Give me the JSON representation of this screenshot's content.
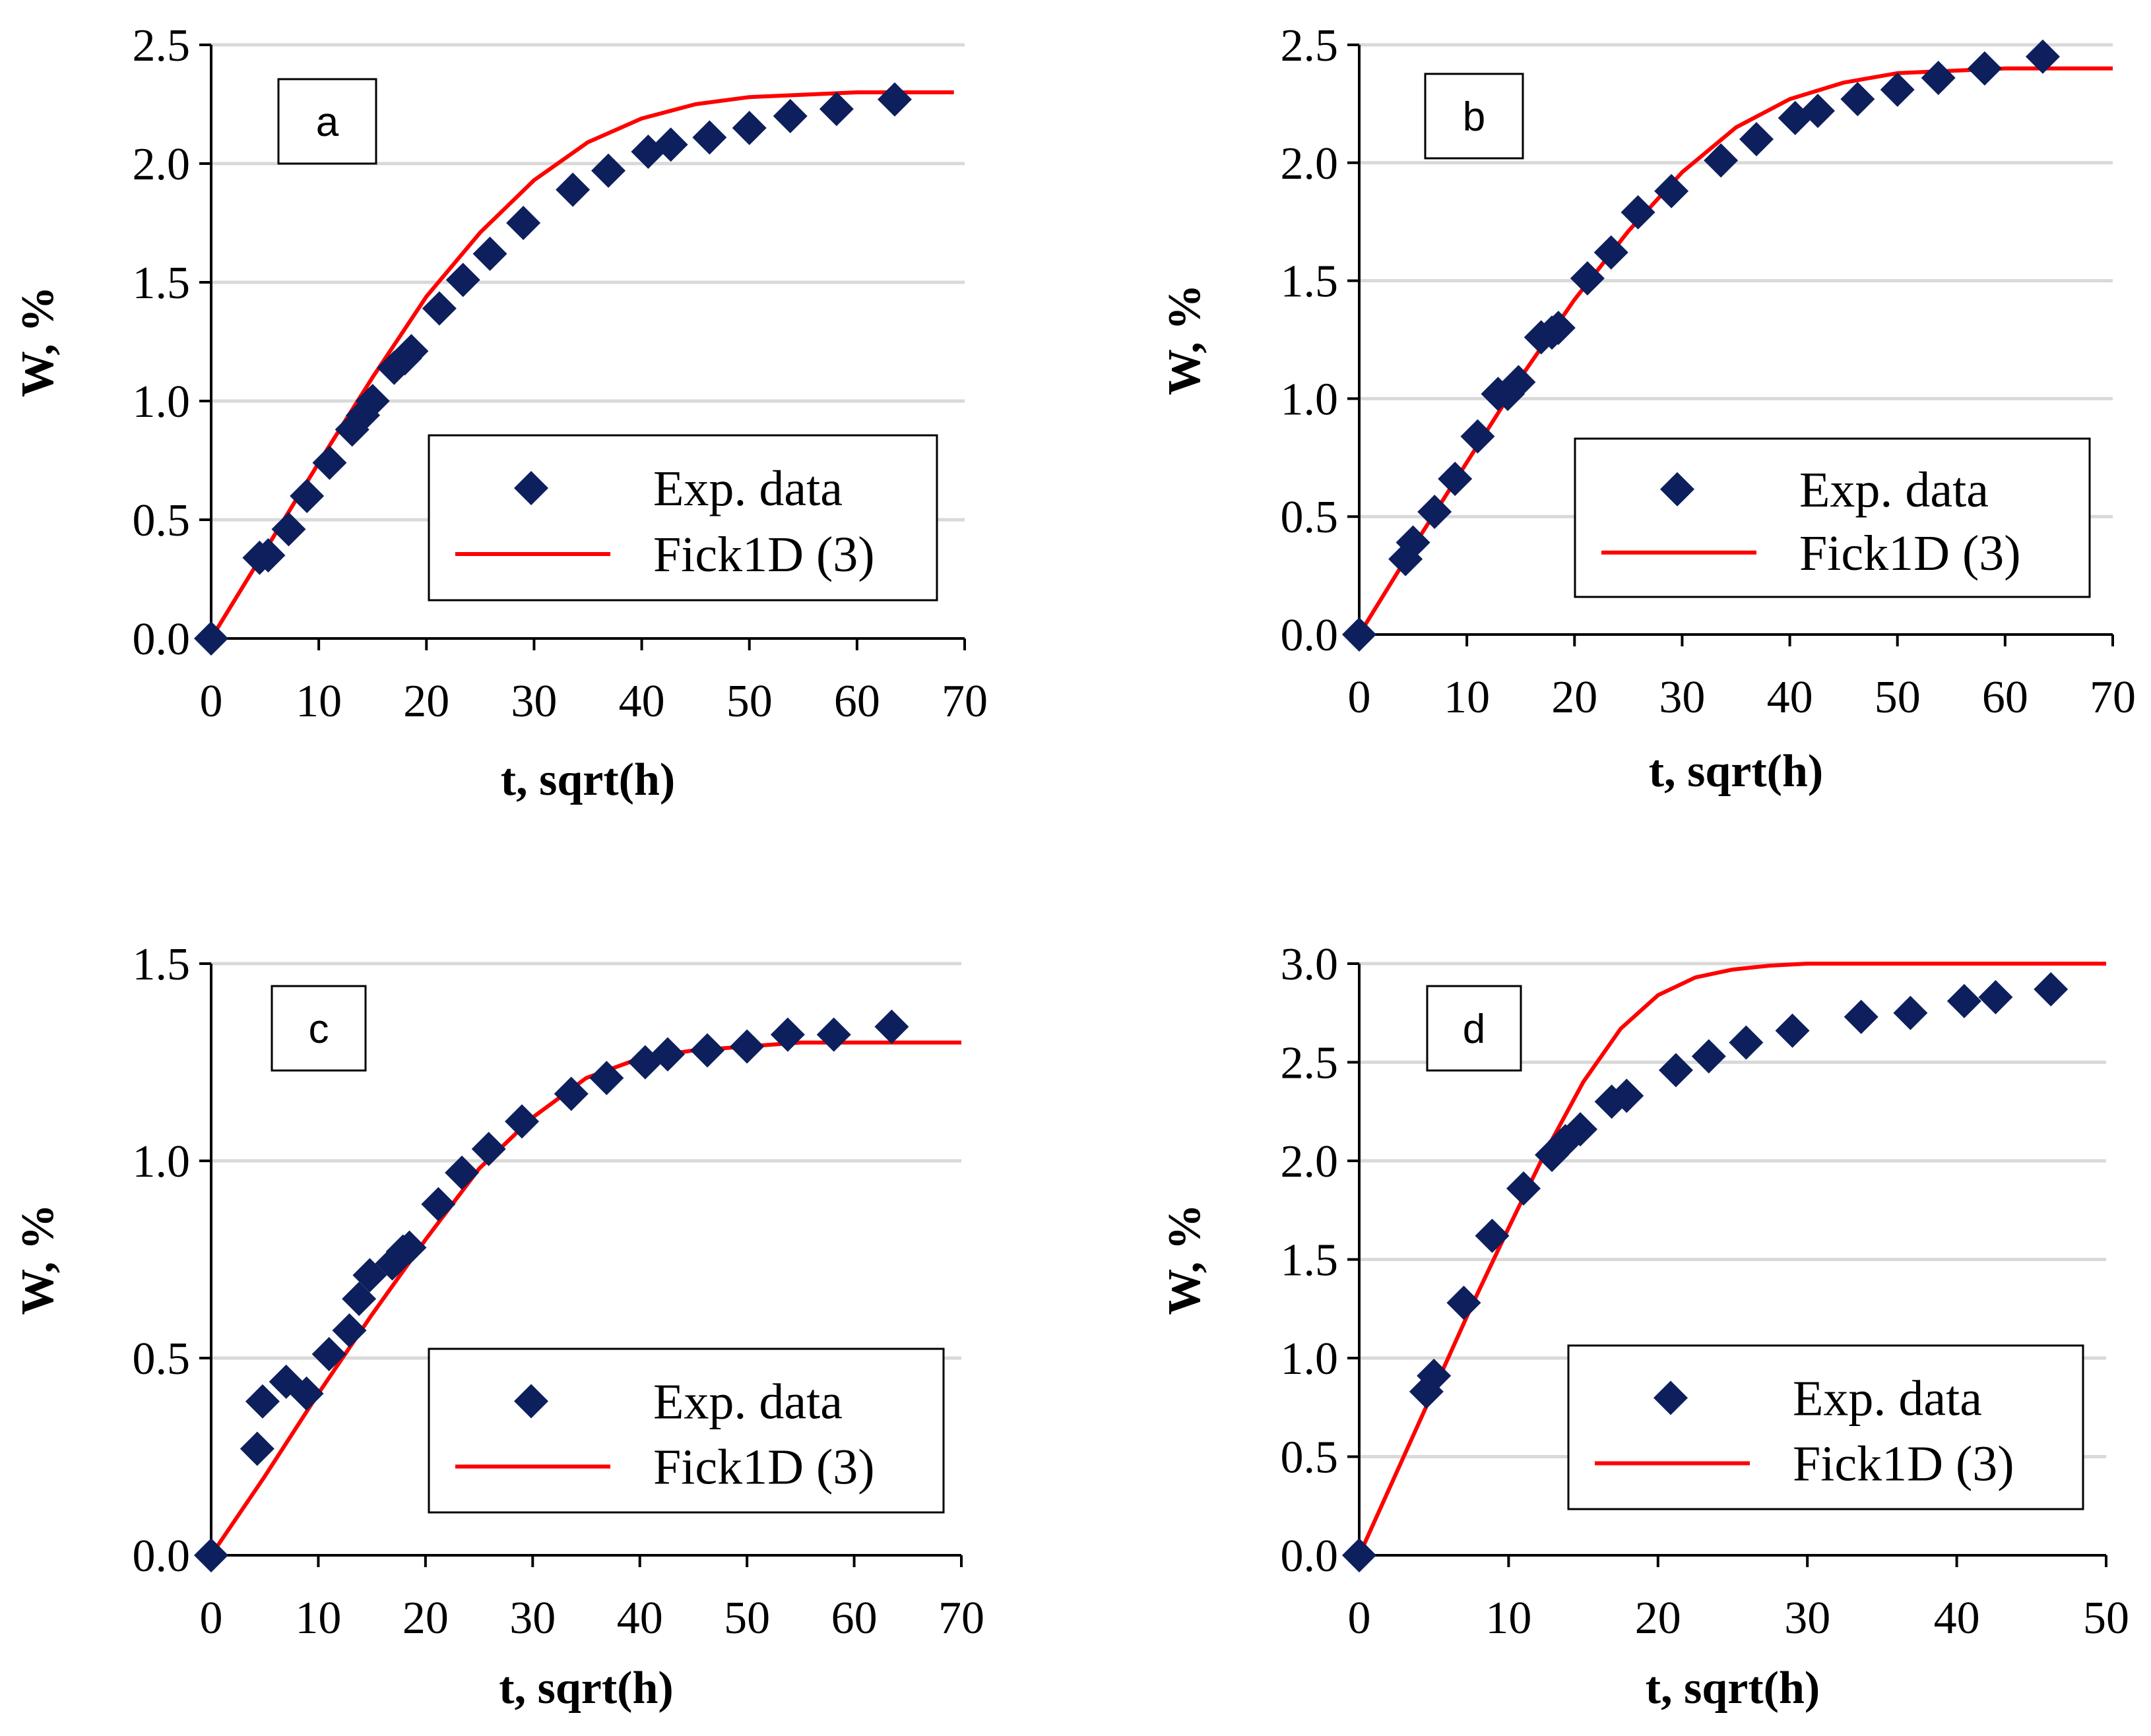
{
  "colors": {
    "marker": "#0d1f5c",
    "fit": "#ff0000",
    "grid": "#d9d9d9",
    "axis": "#000000"
  },
  "chart_data": [
    {
      "type": "scatter",
      "panel_label": "a",
      "xlabel": "t, sqrt(h)",
      "ylabel": "W, %",
      "xlim": [
        0,
        70
      ],
      "ylim": [
        0,
        2.5
      ],
      "xticks": [
        0,
        10,
        20,
        30,
        40,
        50,
        60,
        70
      ],
      "yticks": [
        0,
        0.5,
        1,
        1.5,
        2,
        2.5
      ],
      "ytick_labels": [
        "0.0",
        "0.5",
        "1.0",
        "1.5",
        "2.0",
        "2.5"
      ],
      "grid": true,
      "legend": "bottom-right",
      "series": [
        {
          "name": "Exp. data",
          "kind": "marker",
          "x": [
            0,
            4.5,
            5.3,
            7.2,
            8.9,
            11.0,
            13.1,
            14.1,
            15.0,
            17.0,
            18.0,
            18.6,
            21.2,
            23.4,
            25.9,
            29.0,
            33.6,
            36.9,
            40.6,
            42.7,
            46.3,
            50.0,
            53.8,
            58.1,
            63.5
          ],
          "y": [
            0,
            0.34,
            0.35,
            0.46,
            0.6,
            0.74,
            0.88,
            0.94,
            1.0,
            1.14,
            1.18,
            1.21,
            1.39,
            1.51,
            1.62,
            1.75,
            1.89,
            1.97,
            2.05,
            2.08,
            2.11,
            2.15,
            2.2,
            2.23,
            2.27
          ]
        },
        {
          "name": "Fick1D (3)",
          "kind": "line",
          "x": [
            0,
            5,
            10,
            15,
            20,
            25,
            30,
            35,
            40,
            45,
            50,
            55,
            60,
            65,
            69
          ],
          "y": [
            0,
            0.37,
            0.74,
            1.1,
            1.44,
            1.71,
            1.93,
            2.09,
            2.19,
            2.25,
            2.28,
            2.29,
            2.3,
            2.3,
            2.3
          ]
        }
      ]
    },
    {
      "type": "scatter",
      "panel_label": "b",
      "xlabel": "t, sqrt(h)",
      "ylabel": "W, %",
      "xlim": [
        0,
        70
      ],
      "ylim": [
        0,
        2.5
      ],
      "xticks": [
        0,
        10,
        20,
        30,
        40,
        50,
        60,
        70
      ],
      "yticks": [
        0,
        0.5,
        1,
        1.5,
        2,
        2.5
      ],
      "ytick_labels": [
        "0.0",
        "0.5",
        "1.0",
        "1.5",
        "2.0",
        "2.5"
      ],
      "grid": true,
      "legend": "bottom-right",
      "series": [
        {
          "name": "Exp. data",
          "kind": "marker",
          "x": [
            0,
            4.3,
            5.0,
            7.0,
            8.9,
            11.0,
            12.9,
            13.8,
            14.8,
            16.9,
            17.9,
            18.5,
            21.2,
            23.4,
            25.9,
            29.0,
            33.6,
            36.9,
            40.5,
            42.6,
            46.3,
            50.0,
            53.8,
            58.1,
            63.5
          ],
          "y": [
            0,
            0.32,
            0.39,
            0.52,
            0.66,
            0.84,
            1.02,
            1.02,
            1.07,
            1.26,
            1.28,
            1.3,
            1.51,
            1.62,
            1.79,
            1.88,
            2.01,
            2.1,
            2.19,
            2.22,
            2.27,
            2.31,
            2.36,
            2.4,
            2.45
          ]
        },
        {
          "name": "Fick1D (3)",
          "kind": "line",
          "x": [
            0,
            5,
            10,
            15,
            20,
            25,
            30,
            35,
            40,
            45,
            50,
            55,
            60,
            65,
            70
          ],
          "y": [
            0,
            0.37,
            0.73,
            1.09,
            1.42,
            1.71,
            1.96,
            2.15,
            2.27,
            2.34,
            2.38,
            2.39,
            2.4,
            2.4,
            2.4
          ]
        }
      ]
    },
    {
      "type": "scatter",
      "panel_label": "c",
      "xlabel": "t, sqrt(h)",
      "ylabel": "W, %",
      "xlim": [
        0,
        70
      ],
      "ylim": [
        0,
        1.5
      ],
      "xticks": [
        0,
        10,
        20,
        30,
        40,
        50,
        60,
        70
      ],
      "yticks": [
        0,
        0.5,
        1,
        1.5
      ],
      "ytick_labels": [
        "0.0",
        "0.5",
        "1.0",
        "1.5"
      ],
      "grid": true,
      "legend": "bottom-right",
      "series": [
        {
          "name": "Exp. data",
          "kind": "marker",
          "x": [
            0,
            4.3,
            4.8,
            7.0,
            8.9,
            11.0,
            12.9,
            13.8,
            14.8,
            16.9,
            17.9,
            18.5,
            21.2,
            23.4,
            25.9,
            29.0,
            33.6,
            36.9,
            40.5,
            42.6,
            46.3,
            50.0,
            53.8,
            58.1,
            63.5
          ],
          "y": [
            0,
            0.27,
            0.39,
            0.44,
            0.41,
            0.51,
            0.57,
            0.65,
            0.71,
            0.74,
            0.77,
            0.78,
            0.89,
            0.97,
            1.03,
            1.1,
            1.17,
            1.21,
            1.25,
            1.27,
            1.28,
            1.29,
            1.32,
            1.32,
            1.34
          ]
        },
        {
          "name": "Fick1D (3)",
          "kind": "line",
          "x": [
            0,
            5,
            10,
            15,
            20,
            25,
            30,
            35,
            40,
            45,
            50,
            55,
            60,
            65,
            70
          ],
          "y": [
            0,
            0.2,
            0.41,
            0.61,
            0.8,
            0.98,
            1.11,
            1.21,
            1.26,
            1.28,
            1.29,
            1.3,
            1.3,
            1.3,
            1.3
          ]
        }
      ]
    },
    {
      "type": "scatter",
      "panel_label": "d",
      "xlabel": "t, sqrt(h)",
      "ylabel": "W, %",
      "xlim": [
        0,
        50
      ],
      "ylim": [
        0,
        3.0
      ],
      "xticks": [
        0,
        10,
        20,
        30,
        40,
        50
      ],
      "yticks": [
        0,
        0.5,
        1,
        1.5,
        2,
        2.5,
        3
      ],
      "ytick_labels": [
        "0.0",
        "0.5",
        "1.0",
        "1.5",
        "2.0",
        "2.5",
        "3.0"
      ],
      "grid": true,
      "legend": "bottom-right",
      "series": [
        {
          "name": "Exp. data",
          "kind": "marker",
          "x": [
            0,
            4.5,
            5.0,
            7.0,
            8.9,
            11.0,
            12.9,
            13.8,
            14.8,
            16.9,
            17.9,
            21.2,
            23.4,
            25.9,
            29.0,
            33.6,
            36.9,
            40.5,
            42.6,
            46.3
          ],
          "y": [
            0,
            0.83,
            0.91,
            1.28,
            1.62,
            1.86,
            2.03,
            2.1,
            2.16,
            2.3,
            2.33,
            2.46,
            2.53,
            2.6,
            2.66,
            2.73,
            2.75,
            2.81,
            2.83,
            2.87
          ]
        },
        {
          "name": "Fick1D (3)",
          "kind": "line",
          "x": [
            0,
            2.5,
            5,
            7.5,
            10,
            12.5,
            15,
            17.5,
            20,
            22.5,
            25,
            27.5,
            30,
            35,
            40,
            45,
            50
          ],
          "y": [
            0,
            0.42,
            0.84,
            1.26,
            1.66,
            2.05,
            2.4,
            2.67,
            2.84,
            2.93,
            2.97,
            2.99,
            3.0,
            3.0,
            3.0,
            3.0,
            3.0
          ]
        }
      ]
    }
  ]
}
